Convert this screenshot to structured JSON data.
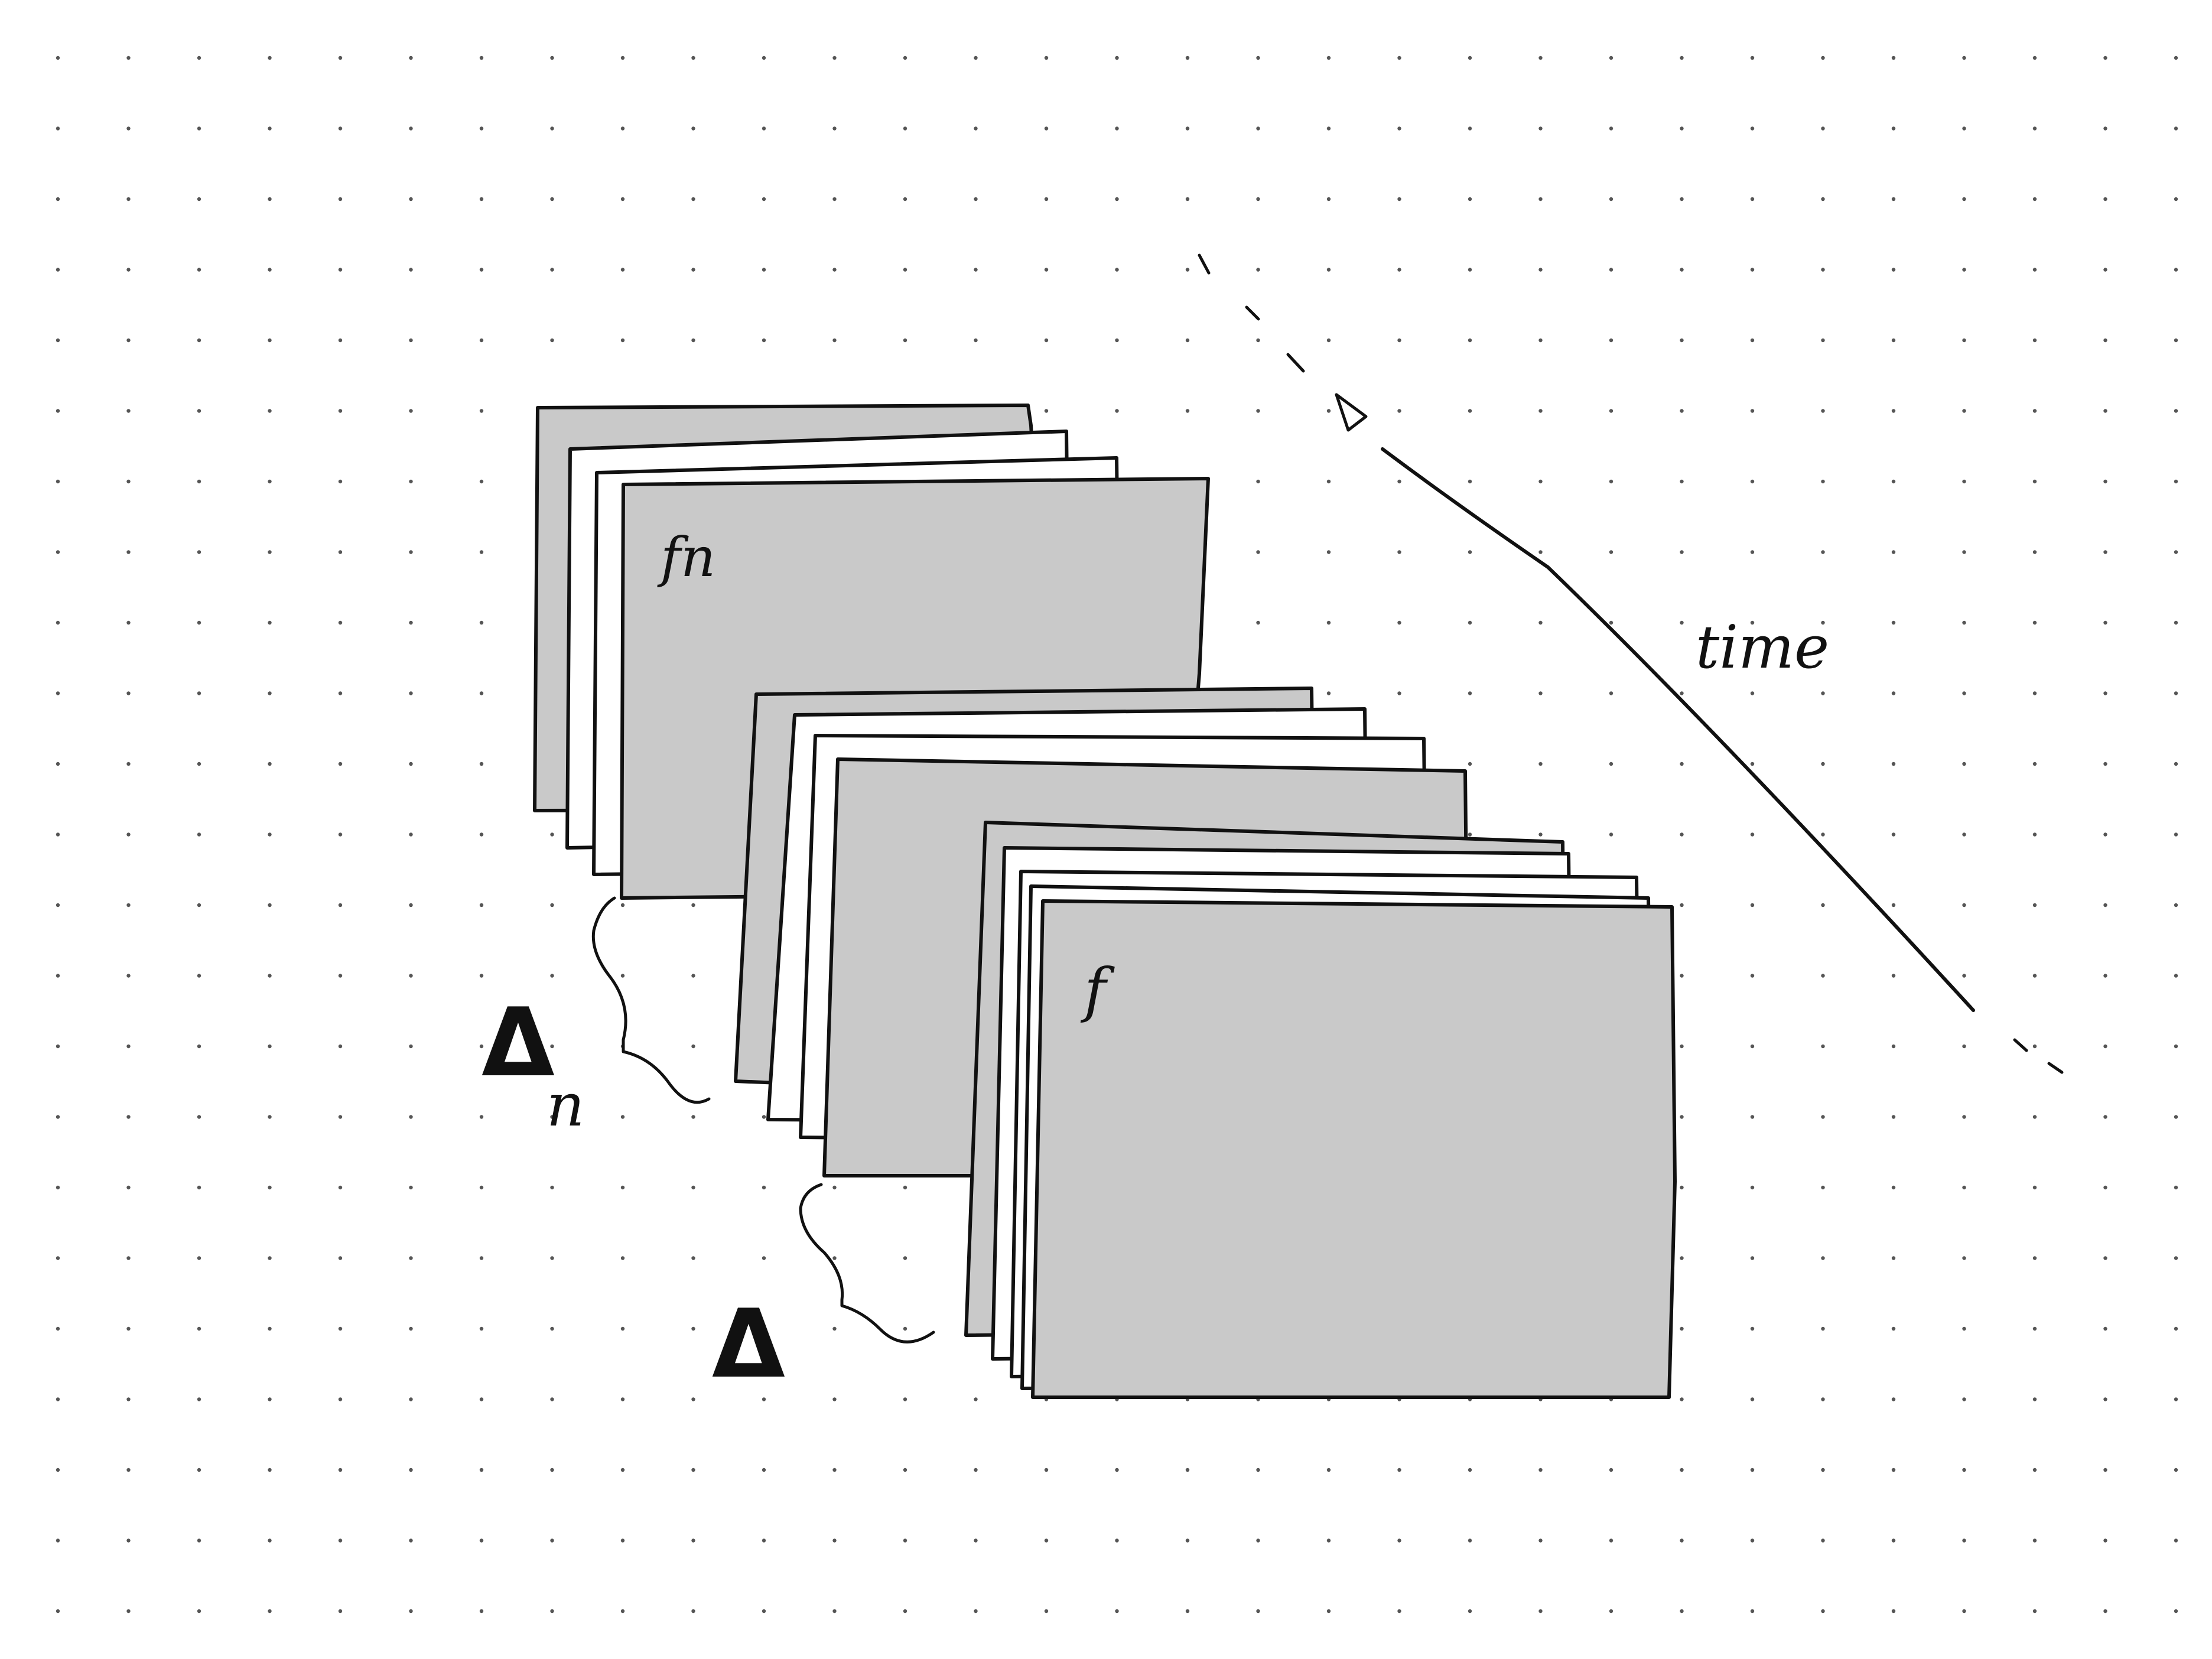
{
  "labels": {
    "time": "time",
    "back_frame": "fn",
    "front_frame": "f",
    "delta_n": "Δ",
    "delta_n_subscript": "n",
    "delta": "Δ"
  },
  "colors": {
    "background": "#ffffff",
    "ink": "#111111",
    "frame_fill": "#c9c9c9",
    "dot_grid": "#555555"
  }
}
